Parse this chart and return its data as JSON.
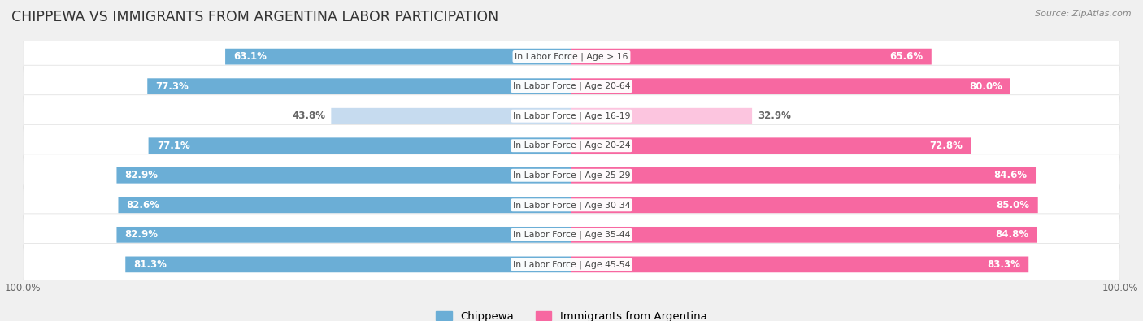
{
  "title": "CHIPPEWA VS IMMIGRANTS FROM ARGENTINA LABOR PARTICIPATION",
  "source": "Source: ZipAtlas.com",
  "categories": [
    "In Labor Force | Age > 16",
    "In Labor Force | Age 20-64",
    "In Labor Force | Age 16-19",
    "In Labor Force | Age 20-24",
    "In Labor Force | Age 25-29",
    "In Labor Force | Age 30-34",
    "In Labor Force | Age 35-44",
    "In Labor Force | Age 45-54"
  ],
  "chippewa": [
    63.1,
    77.3,
    43.8,
    77.1,
    82.9,
    82.6,
    82.9,
    81.3
  ],
  "argentina": [
    65.6,
    80.0,
    32.9,
    72.8,
    84.6,
    85.0,
    84.8,
    83.3
  ],
  "chippewa_color": "#6baed6",
  "chippewa_color_light": "#c6dbef",
  "argentina_color": "#f768a1",
  "argentina_color_light": "#fcc5df",
  "label_color_white": "#ffffff",
  "label_color_dark": "#666666",
  "bg_color": "#f0f0f0",
  "row_bg": "#ffffff",
  "row_bg_shadow": "#e0e0e0",
  "bar_height": 0.52,
  "max_value": 100.0,
  "legend_labels": [
    "Chippewa",
    "Immigrants from Argentina"
  ],
  "title_fontsize": 12.5,
  "label_fontsize": 8.5,
  "category_fontsize": 7.8,
  "footer_fontsize": 8.5
}
